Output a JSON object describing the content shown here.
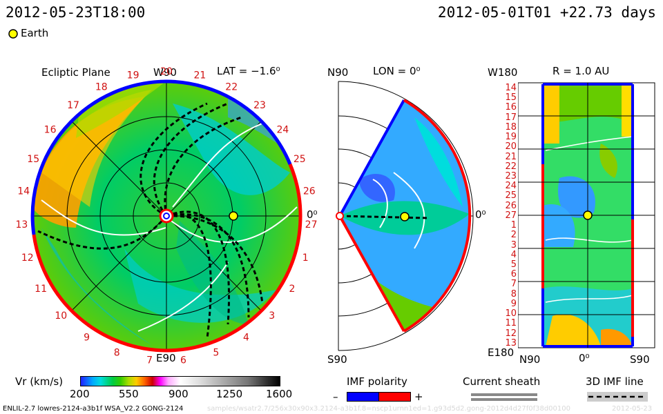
{
  "header": {
    "sim_time": "2012-05-23T18:00",
    "ref_time": "2012-05-01T01 +22.73 days"
  },
  "legend": {
    "earth_label": "Earth",
    "earth_color": "#ffff00"
  },
  "ecliptic": {
    "title": "Ecliptic Plane",
    "lat_label": "LAT = −1.6⁰",
    "top_label": "W90",
    "bottom_label": "E90",
    "right_label": "0⁰",
    "carrington_ticks": [
      "20",
      "21",
      "22",
      "23",
      "24",
      "25",
      "26",
      "27",
      "1",
      "2",
      "3",
      "4",
      "5",
      "6",
      "7",
      "8",
      "9",
      "10",
      "11",
      "12",
      "13",
      "14",
      "15",
      "16",
      "17",
      "18",
      "19"
    ]
  },
  "meridional": {
    "title": "LON = 0⁰",
    "top_label": "N90",
    "bottom_label": "S90",
    "right_label": "0⁰"
  },
  "radial": {
    "title": "R = 1.0 AU",
    "top_left": "W180",
    "bottom_left": "E180",
    "bottom_axis": [
      "N90",
      "0⁰",
      "S90"
    ],
    "rows": [
      "14",
      "15",
      "16",
      "17",
      "18",
      "19",
      "20",
      "21",
      "22",
      "23",
      "24",
      "25",
      "26",
      "27",
      "1",
      "2",
      "3",
      "4",
      "5",
      "6",
      "7",
      "8",
      "9",
      "10",
      "11",
      "12",
      "13"
    ]
  },
  "colorbar": {
    "label": "Vr (km/s)",
    "ticks": [
      "200",
      "550",
      "900",
      "1250",
      "1600"
    ],
    "range": [
      200,
      1600
    ]
  },
  "imf": {
    "polarity_label": "IMF polarity",
    "minus": "–",
    "plus": "+",
    "negative_color": "#0000ff",
    "positive_color": "#ff0000",
    "sheath_label": "Current sheath",
    "line_label": "3D IMF line"
  },
  "footer": {
    "model": "ENLIL-2.7 lowres-2124-a3b1f WSA_V2.2 GONG-2124",
    "watermark": "samples/wsatr2.7/256x30x90x3.2124-a3b1f.8=nscp1urnn1ed=1.g93d5d2.gong-2012d4d27f0f38d00100",
    "date_stamp": "2012-05-23"
  },
  "chart_data": [
    {
      "type": "heatmap",
      "title": "Ecliptic Plane",
      "subtitle": "LAT = −1.6⁰",
      "quantity": "Vr (km/s)",
      "value_range": [
        200,
        1600
      ],
      "projection": "polar (heliocentric, ecliptic)",
      "markers": [
        {
          "name": "Earth",
          "longitude_deg": 0
        }
      ]
    },
    {
      "type": "heatmap",
      "title": "LON = 0⁰",
      "quantity": "Vr (km/s)",
      "projection": "meridional wedge N90–S90",
      "markers": [
        {
          "name": "Earth",
          "latitude_deg": 0
        }
      ]
    },
    {
      "type": "heatmap",
      "title": "R = 1.0 AU",
      "quantity": "Vr (km/s)",
      "xlabel_ticks": [
        "N90",
        "0⁰",
        "S90"
      ],
      "ylabel_ticks": [
        "W180",
        "E180"
      ],
      "markers": [
        {
          "name": "Earth",
          "latitude_deg": 0,
          "longitude_deg": 0
        }
      ]
    }
  ]
}
